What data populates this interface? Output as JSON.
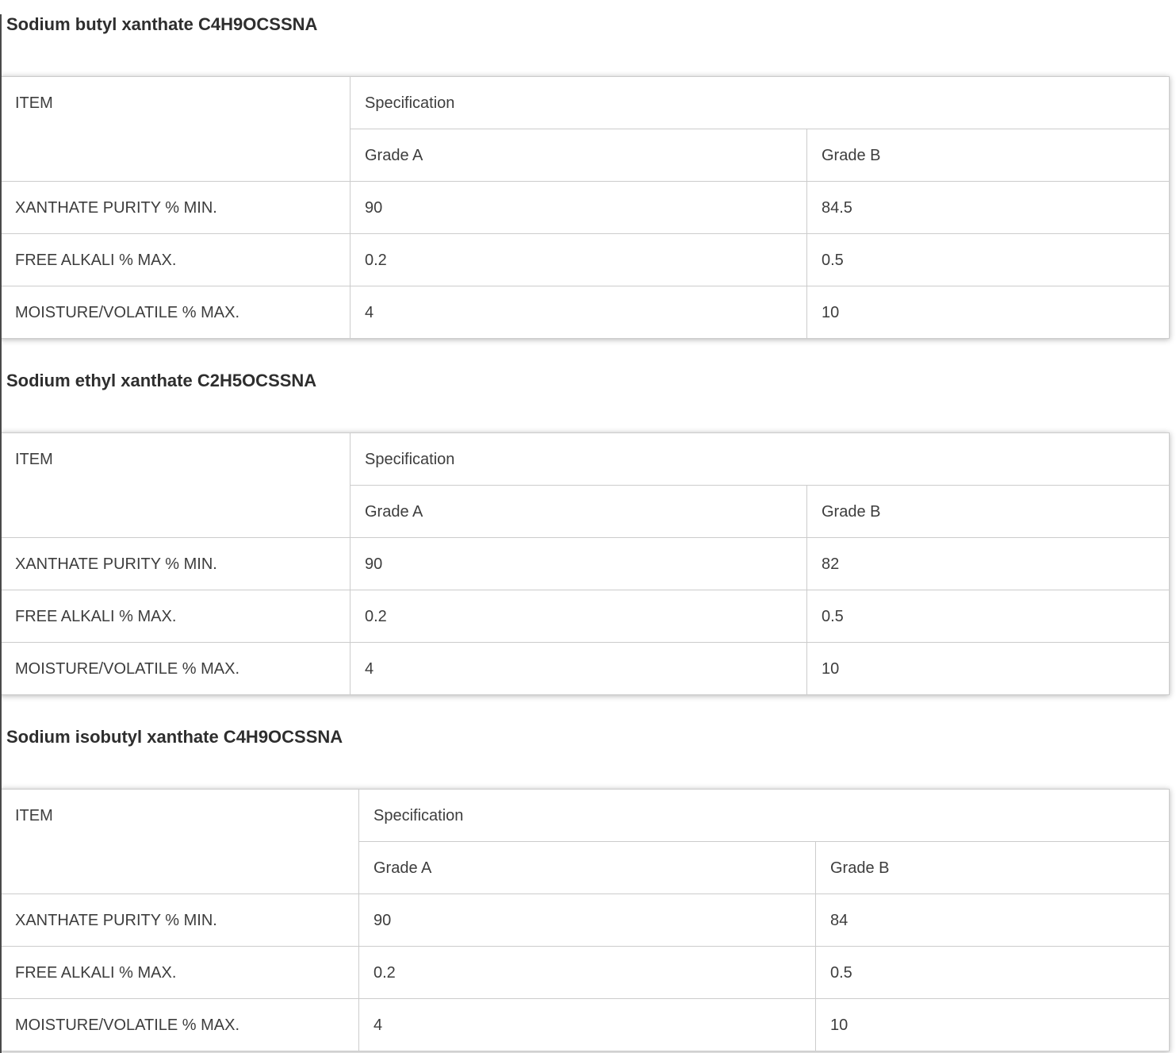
{
  "colors": {
    "text": "#3d3d3d",
    "heading_text": "#2e2e2e",
    "table_border": "#cccccc",
    "page_background": "#ffffff",
    "page_left_edge": "#4a4a4a"
  },
  "sections": [
    {
      "heading": "Sodium butyl xanthate C4H9OCSSNA",
      "table": {
        "item_header": "ITEM",
        "spec_header": "Specification",
        "grade_a_header": "Grade A",
        "grade_b_header": "Grade B",
        "rows": [
          {
            "item": "XANTHATE PURITY % MIN.",
            "grade_a": "90",
            "grade_b": "84.5"
          },
          {
            "item": "FREE ALKALI % MAX.",
            "grade_a": "0.2",
            "grade_b": "0.5"
          },
          {
            "item": "MOISTURE/VOLATILE % MAX.",
            "grade_a": "4",
            "grade_b": "10"
          }
        ]
      }
    },
    {
      "heading": "Sodium ethyl xanthate C2H5OCSSNA",
      "table": {
        "item_header": "ITEM",
        "spec_header": "Specification",
        "grade_a_header": "Grade A",
        "grade_b_header": "Grade B",
        "rows": [
          {
            "item": "XANTHATE PURITY % MIN.",
            "grade_a": "90",
            "grade_b": "82"
          },
          {
            "item": "FREE ALKALI % MAX.",
            "grade_a": "0.2",
            "grade_b": "0.5"
          },
          {
            "item": "MOISTURE/VOLATILE % MAX.",
            "grade_a": "4",
            "grade_b": "10"
          }
        ]
      }
    },
    {
      "heading": "Sodium isobutyl xanthate C4H9OCSSNA",
      "table": {
        "item_header": "ITEM",
        "spec_header": "Specification",
        "grade_a_header": "Grade A",
        "grade_b_header": "Grade B",
        "rows": [
          {
            "item": "XANTHATE PURITY % MIN.",
            "grade_a": "90",
            "grade_b": "84"
          },
          {
            "item": "FREE ALKALI % MAX.",
            "grade_a": "0.2",
            "grade_b": "0.5"
          },
          {
            "item": "MOISTURE/VOLATILE % MAX.",
            "grade_a": "4",
            "grade_b": "10"
          }
        ]
      }
    }
  ]
}
